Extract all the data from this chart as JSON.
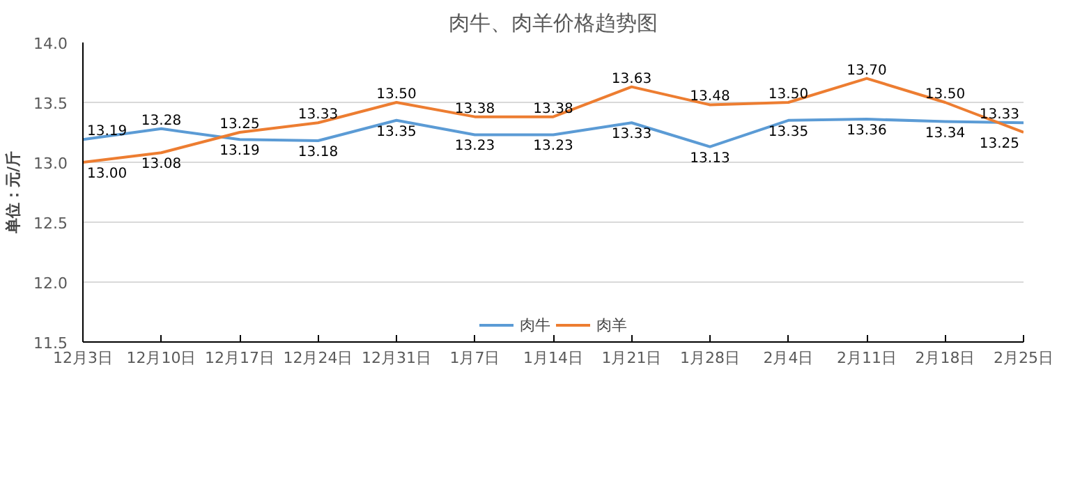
{
  "chart_data": {
    "type": "line",
    "title": "肉牛、肉羊价格趋势图",
    "ylabel": "单位：元/斤",
    "categories": [
      "12月3日",
      "12月10日",
      "12月17日",
      "12月24日",
      "12月31日",
      "1月7日",
      "1月14日",
      "1月21日",
      "1月28日",
      "2月4日",
      "2月11日",
      "2月18日",
      "2月25日"
    ],
    "series": [
      {
        "name": "肉牛",
        "color": "#5b9bd5",
        "values": [
          13.19,
          13.28,
          13.19,
          13.18,
          13.35,
          13.23,
          13.23,
          13.33,
          13.13,
          13.35,
          13.36,
          13.34,
          13.33
        ],
        "value_labels": [
          "13.19",
          "13.28",
          "13.19",
          "13.18",
          "13.35",
          "13.23",
          "13.23",
          "13.33",
          "13.13",
          "13.35",
          "13.36",
          "13.34",
          "13.33"
        ]
      },
      {
        "name": "肉羊",
        "color": "#ed7d31",
        "values": [
          13.0,
          13.08,
          13.25,
          13.33,
          13.5,
          13.38,
          13.38,
          13.63,
          13.48,
          13.5,
          13.7,
          13.5,
          13.25
        ],
        "value_labels": [
          "13.00",
          "13.08",
          "13.25",
          "13.33",
          "13.50",
          "13.38",
          "13.38",
          "13.63",
          "13.48",
          "13.50",
          "13.70",
          "13.50",
          "13.25"
        ]
      }
    ],
    "ylim": [
      11.5,
      14.0
    ],
    "yticks": [
      {
        "value": 11.5,
        "label": "11.5"
      },
      {
        "value": 12.0,
        "label": "12.0"
      },
      {
        "value": 12.5,
        "label": "12.5"
      },
      {
        "value": 13.0,
        "label": "13.0"
      },
      {
        "value": 13.5,
        "label": "13.5"
      },
      {
        "value": 14.0,
        "label": "14.0"
      }
    ],
    "grid": "y",
    "legend": "bottom",
    "marker": "none",
    "line_style": "solid"
  }
}
